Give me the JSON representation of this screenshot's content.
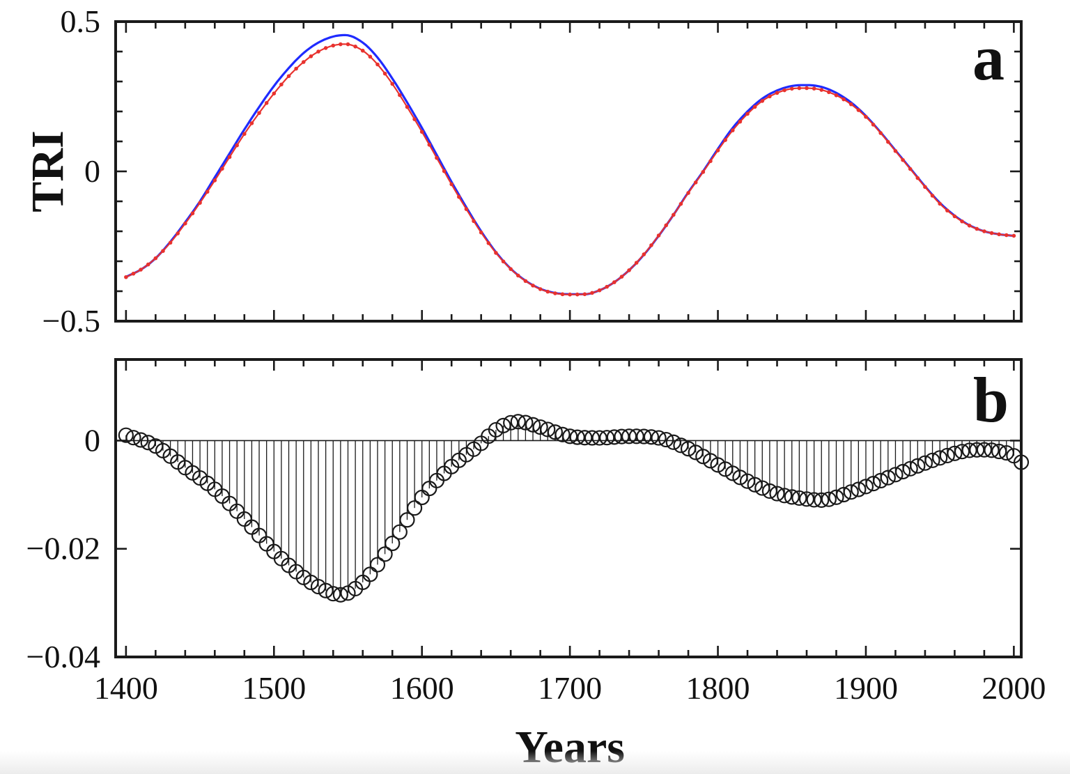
{
  "chart_data": [
    {
      "panel_label": "a",
      "type": "line",
      "title": "",
      "xlabel": "",
      "ylabel": "TRI",
      "xlim": [
        1393,
        2005
      ],
      "ylim": [
        -0.5,
        0.5
      ],
      "yticks": [
        0.5,
        0,
        -0.5
      ],
      "ytick_labels": [
        "0.5",
        "0",
        "−0.5"
      ],
      "colors": {
        "solid_line": "#1f2bff",
        "dotted_line": "#e8322e"
      },
      "series": [
        {
          "style": "solid",
          "x": [
            1400,
            1410,
            1420,
            1430,
            1440,
            1450,
            1460,
            1470,
            1480,
            1490,
            1500,
            1510,
            1520,
            1530,
            1540,
            1548,
            1560,
            1570,
            1580,
            1590,
            1600,
            1610,
            1620,
            1630,
            1640,
            1650,
            1660,
            1670,
            1680,
            1690,
            1700,
            1710,
            1720,
            1730,
            1740,
            1750,
            1760,
            1770,
            1780,
            1790,
            1800,
            1810,
            1820,
            1830,
            1840,
            1850,
            1860,
            1870,
            1880,
            1890,
            1900,
            1910,
            1920,
            1930,
            1940,
            1950,
            1960,
            1970,
            1980,
            1990,
            2000
          ],
          "y": [
            -0.352,
            -0.328,
            -0.29,
            -0.235,
            -0.17,
            -0.1,
            -0.02,
            0.06,
            0.14,
            0.215,
            0.285,
            0.345,
            0.395,
            0.43,
            0.45,
            0.455,
            0.43,
            0.38,
            0.31,
            0.23,
            0.145,
            0.055,
            -0.035,
            -0.12,
            -0.2,
            -0.27,
            -0.325,
            -0.365,
            -0.392,
            -0.406,
            -0.41,
            -0.41,
            -0.397,
            -0.37,
            -0.33,
            -0.278,
            -0.215,
            -0.145,
            -0.07,
            0.0,
            0.075,
            0.145,
            0.2,
            0.243,
            0.27,
            0.285,
            0.288,
            0.282,
            0.262,
            0.23,
            0.185,
            0.13,
            0.07,
            0.01,
            -0.05,
            -0.105,
            -0.148,
            -0.18,
            -0.2,
            -0.21,
            -0.215
          ]
        },
        {
          "style": "dotted",
          "x": [
            1400,
            1410,
            1420,
            1430,
            1440,
            1450,
            1460,
            1470,
            1480,
            1490,
            1500,
            1510,
            1520,
            1530,
            1540,
            1548,
            1560,
            1570,
            1580,
            1590,
            1600,
            1610,
            1620,
            1630,
            1640,
            1650,
            1660,
            1670,
            1680,
            1690,
            1700,
            1710,
            1720,
            1730,
            1740,
            1750,
            1760,
            1770,
            1780,
            1790,
            1800,
            1810,
            1820,
            1830,
            1840,
            1850,
            1860,
            1870,
            1880,
            1890,
            1900,
            1910,
            1920,
            1930,
            1940,
            1950,
            1960,
            1970,
            1980,
            1990,
            2000
          ],
          "y": [
            -0.353,
            -0.328,
            -0.29,
            -0.238,
            -0.174,
            -0.105,
            -0.03,
            0.048,
            0.125,
            0.195,
            0.26,
            0.318,
            0.365,
            0.4,
            0.42,
            0.425,
            0.403,
            0.357,
            0.292,
            0.215,
            0.132,
            0.045,
            -0.043,
            -0.126,
            -0.204,
            -0.272,
            -0.326,
            -0.366,
            -0.393,
            -0.407,
            -0.411,
            -0.41,
            -0.397,
            -0.37,
            -0.33,
            -0.277,
            -0.214,
            -0.145,
            -0.072,
            -0.002,
            0.07,
            0.137,
            0.192,
            0.235,
            0.262,
            0.276,
            0.278,
            0.272,
            0.254,
            0.224,
            0.182,
            0.128,
            0.068,
            0.008,
            -0.052,
            -0.108,
            -0.15,
            -0.181,
            -0.2,
            -0.21,
            -0.215
          ]
        }
      ]
    },
    {
      "panel_label": "b",
      "type": "stem",
      "title": "",
      "xlabel": "Years",
      "ylabel": "",
      "xlim": [
        1393,
        2005
      ],
      "ylim": [
        -0.04,
        0.015
      ],
      "yticks": [
        0,
        -0.02,
        -0.04
      ],
      "ytick_labels": [
        "0",
        "−0.02",
        "−0.04"
      ],
      "xticks": [
        1400,
        1500,
        1600,
        1700,
        1800,
        1900,
        2000
      ],
      "xtick_labels": [
        "1400",
        "1500",
        "1600",
        "1700",
        "1800",
        "1900",
        "2000"
      ],
      "series": [
        {
          "marker": "open-circle",
          "x": [
            1400,
            1420,
            1440,
            1460,
            1480,
            1500,
            1520,
            1530,
            1540,
            1545,
            1560,
            1580,
            1600,
            1620,
            1640,
            1650,
            1665,
            1680,
            1700,
            1720,
            1740,
            1760,
            1780,
            1800,
            1820,
            1840,
            1860,
            1870,
            1890,
            1910,
            1930,
            1950,
            1970,
            1980,
            1990,
            2000,
            2005
          ],
          "y": [
            0.001,
            -0.001,
            -0.005,
            -0.009,
            -0.0145,
            -0.0205,
            -0.0253,
            -0.027,
            -0.0283,
            -0.0285,
            -0.0262,
            -0.019,
            -0.0105,
            -0.0048,
            -0.0005,
            0.002,
            0.0035,
            0.0025,
            0.0008,
            0.0005,
            0.0008,
            0.0005,
            -0.0015,
            -0.0045,
            -0.0075,
            -0.0098,
            -0.0108,
            -0.011,
            -0.0095,
            -0.0074,
            -0.0052,
            -0.0032,
            -0.0018,
            -0.0017,
            -0.002,
            -0.0028,
            -0.004
          ]
        }
      ]
    }
  ]
}
